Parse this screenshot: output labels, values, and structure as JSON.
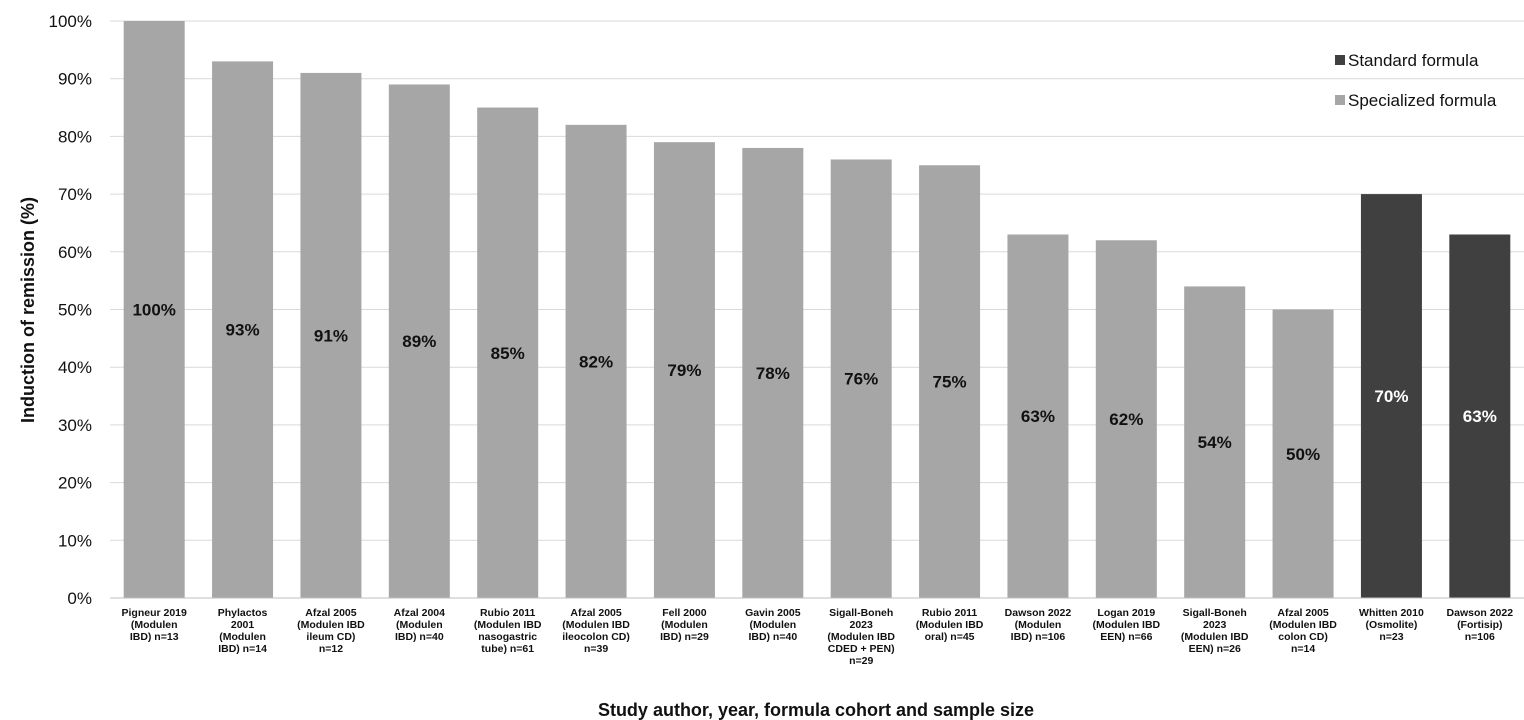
{
  "chart_data": {
    "type": "bar",
    "title": "",
    "xlabel": "Study author, year, formula cohort and sample size",
    "ylabel": "Induction of remission (%)",
    "ylim": [
      0,
      100
    ],
    "y_tick_values": [
      0,
      10,
      20,
      30,
      40,
      50,
      60,
      70,
      80,
      90,
      100
    ],
    "y_tick_suffix": "%",
    "grid": true,
    "legend_position": "top-right",
    "categories": [
      [
        "Pigneur 2019",
        "(Modulen",
        "IBD) n=13"
      ],
      [
        "Phylactos",
        "2001",
        "(Modulen",
        "IBD) n=14"
      ],
      [
        "Afzal 2005",
        "(Modulen IBD",
        "ileum CD)",
        "n=12"
      ],
      [
        "Afzal 2004",
        "(Modulen",
        "IBD) n=40"
      ],
      [
        "Rubio 2011",
        "(Modulen IBD",
        "nasogastric",
        "tube) n=61"
      ],
      [
        "Afzal 2005",
        "(Modulen IBD",
        "ileocolon CD)",
        "n=39"
      ],
      [
        "Fell 2000",
        "(Modulen",
        "IBD) n=29"
      ],
      [
        "Gavin 2005",
        "(Modulen",
        "IBD) n=40"
      ],
      [
        "Sigall-Boneh",
        "2023",
        "(Modulen IBD",
        "CDED + PEN)",
        "n=29"
      ],
      [
        "Rubio 2011",
        "(Modulen IBD",
        "oral) n=45"
      ],
      [
        "Dawson 2022",
        "(Modulen",
        "IBD) n=106"
      ],
      [
        "Logan 2019",
        "(Modulen IBD",
        "EEN) n=66"
      ],
      [
        "Sigall-Boneh",
        "2023",
        "(Modulen IBD",
        "EEN) n=26"
      ],
      [
        "Afzal 2005",
        "(Modulen IBD",
        "colon CD)",
        "n=14"
      ],
      [
        "Whitten 2010",
        "(Osmolite)",
        "n=23"
      ],
      [
        "Dawson 2022",
        "(Fortisip)",
        "n=106"
      ]
    ],
    "values": [
      100,
      93,
      91,
      89,
      85,
      82,
      79,
      78,
      76,
      75,
      63,
      62,
      54,
      50,
      70,
      63
    ],
    "value_labels": [
      "100%",
      "93%",
      "91%",
      "89%",
      "85%",
      "82%",
      "79%",
      "78%",
      "76%",
      "75%",
      "63%",
      "62%",
      "54%",
      "50%",
      "70%",
      "63%"
    ],
    "bar_group": [
      1,
      1,
      1,
      1,
      1,
      1,
      1,
      1,
      1,
      1,
      1,
      1,
      1,
      1,
      0,
      0
    ],
    "series": [
      {
        "name": "Standard formula",
        "color": "#404040"
      },
      {
        "name": "Specialized formula",
        "color": "#a6a6a6"
      }
    ],
    "label_colors": [
      "#ffffff",
      "#111111"
    ],
    "grid_color": "#d9d9d9"
  }
}
